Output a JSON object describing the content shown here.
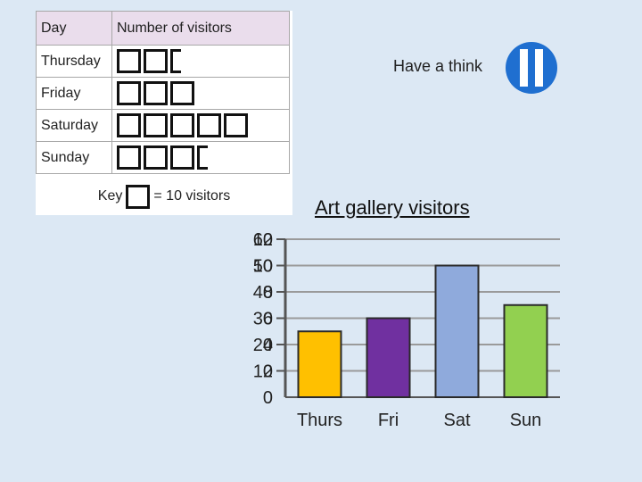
{
  "pictogram": {
    "headers": {
      "day": "Day",
      "number": "Number of visitors"
    },
    "rows": [
      {
        "day": "Thursday",
        "full": 2,
        "partial": true
      },
      {
        "day": "Friday",
        "full": 3,
        "partial": false
      },
      {
        "day": "Saturday",
        "full": 5,
        "partial": false
      },
      {
        "day": "Sunday",
        "full": 3,
        "partial": true
      }
    ],
    "key": {
      "label": "Key",
      "meaning": "= 10 visitors"
    }
  },
  "prompt": {
    "label": "Have a think"
  },
  "colors": {
    "thurs": "#ffc000",
    "fri": "#7030a0",
    "sat": "#8faadc",
    "sun": "#92d050",
    "pause": "#1f6fd0"
  },
  "chart_data": {
    "type": "bar",
    "title": "Art gallery visitors",
    "categories": [
      "Thurs",
      "Fri",
      "Sat",
      "Sun"
    ],
    "values": [
      25,
      30,
      50,
      35
    ],
    "ylim": [
      0,
      60
    ],
    "y_ticks_primary": [
      "0",
      "10",
      "20",
      "30",
      "40",
      "50",
      "60"
    ],
    "y_ticks_overlay": [
      "2",
      "4",
      "6",
      "8",
      "10",
      "12"
    ],
    "grid": true
  }
}
